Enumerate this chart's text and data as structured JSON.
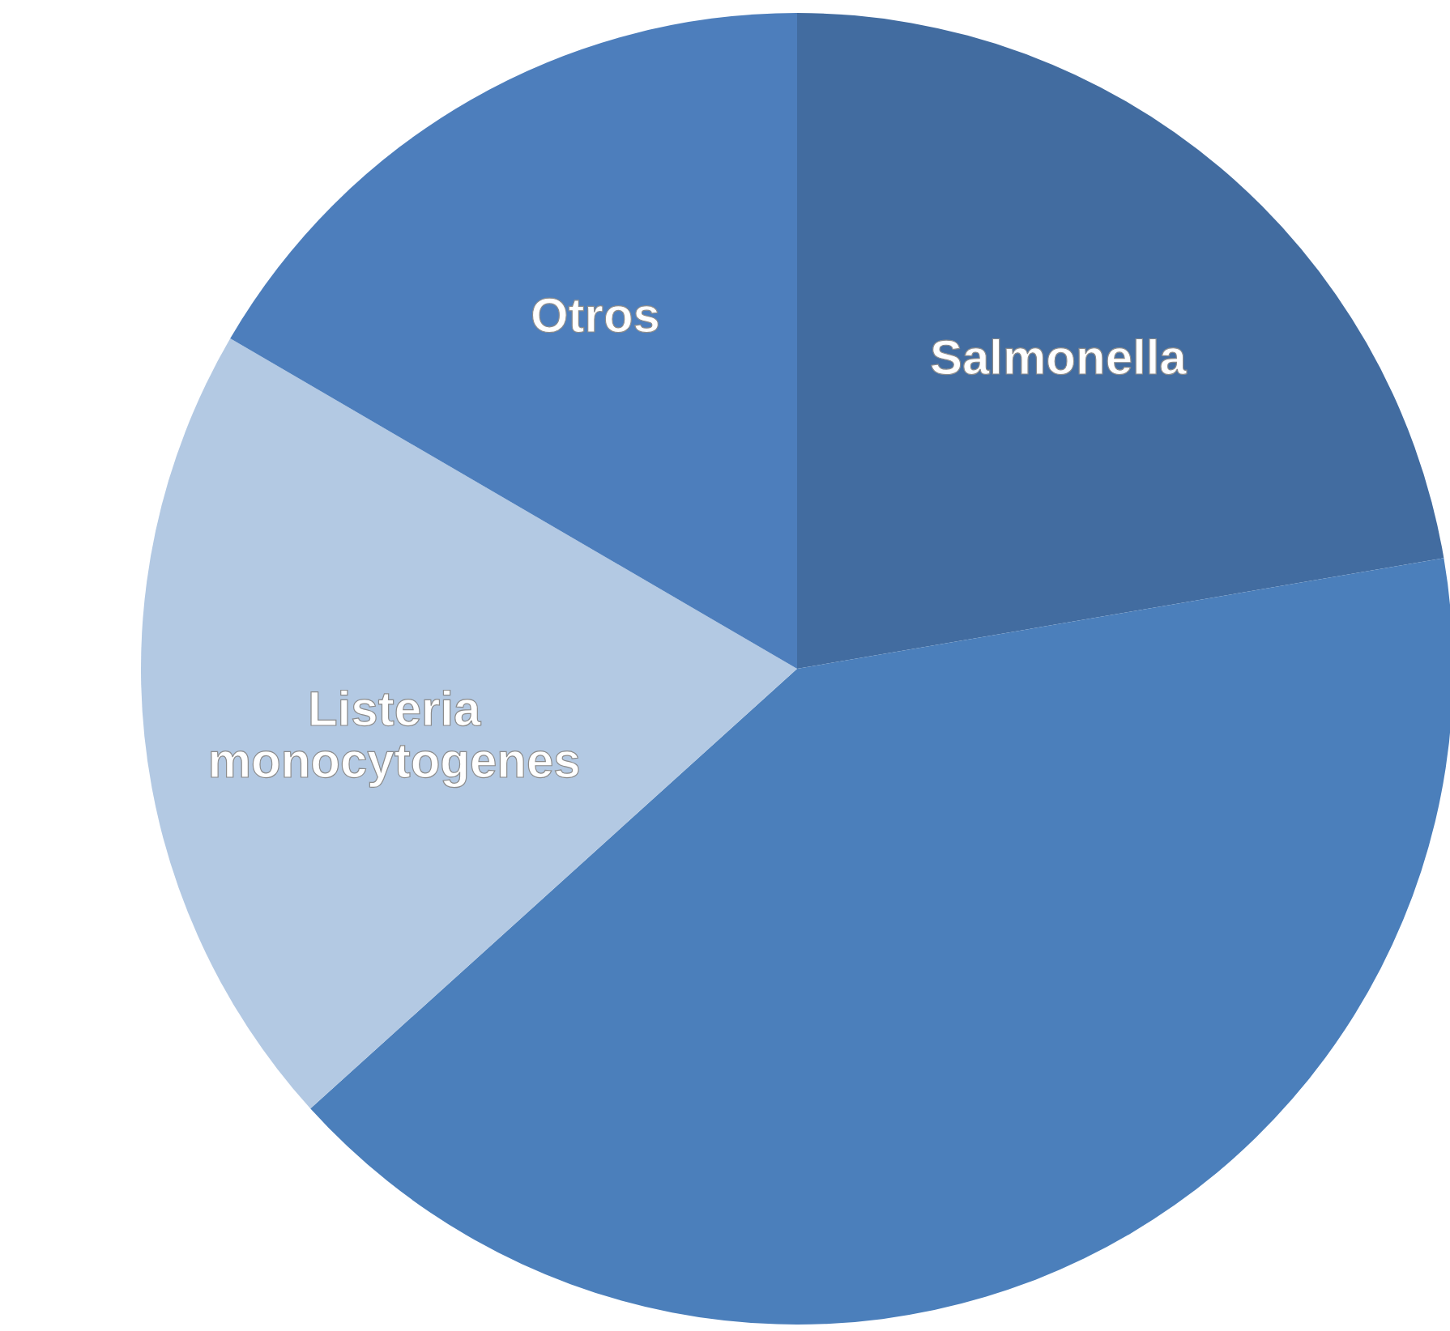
{
  "chart_data": {
    "type": "pie",
    "categories": [
      "Salmonella",
      null,
      "Listeria monocytogenes",
      "Otros"
    ],
    "values": [
      22.3,
      41,
      20.1,
      16.6
    ],
    "colors": [
      "#426ca0",
      "#4b7fbb",
      "#b3c9e3",
      "#4d7ebc"
    ]
  }
}
